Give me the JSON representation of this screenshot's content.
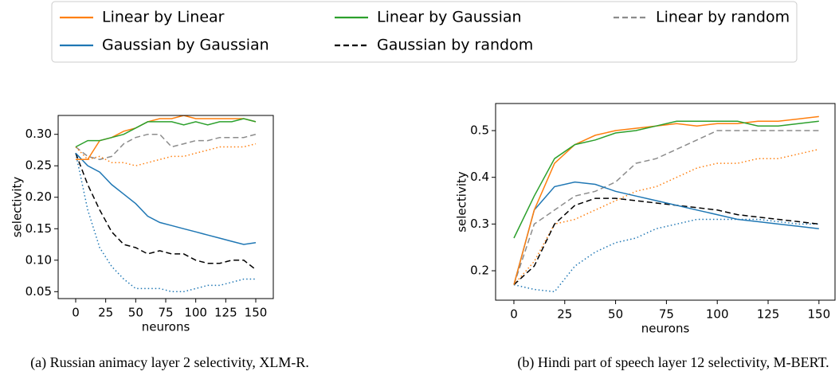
{
  "legend": {
    "entries": [
      {
        "name": "Linear by Linear",
        "color": "#ff7f0e",
        "dash": "solid"
      },
      {
        "name": "Gaussian by Gaussian",
        "color": "#1f77b4",
        "dash": "solid"
      },
      {
        "name": "Linear by Gaussian",
        "color": "#2ca02c",
        "dash": "solid"
      },
      {
        "name": "Gaussian by random",
        "color": "#000000",
        "dash": "dashed"
      },
      {
        "name": "Linear by random",
        "color": "#8c8c8c",
        "dash": "dashed"
      }
    ]
  },
  "chart_data": [
    {
      "type": "line",
      "caption": "(a) Russian animacy layer 2 selectivity, XLM-R.",
      "x_label": "neurons",
      "y_label": "selectivity",
      "xlim": [
        -14.6,
        164.6
      ],
      "xticks": [
        0,
        25,
        50,
        75,
        100,
        125,
        150
      ],
      "ylim": [
        0.039,
        0.33
      ],
      "yticks": [
        0.05,
        {
          "value": 0.1,
          "label": "0.10"
        },
        0.15,
        {
          "value": 0.2,
          "label": "0.20"
        },
        0.25,
        {
          "value": 0.3,
          "label": "0.30"
        }
      ],
      "x": [
        0,
        10,
        20,
        30,
        40,
        50,
        60,
        70,
        80,
        90,
        100,
        110,
        120,
        130,
        140,
        150
      ],
      "series": [
        {
          "color": "#8c8c8c",
          "dash": "dashed",
          "values": [
            0.28,
            0.265,
            0.26,
            0.265,
            0.285,
            0.295,
            0.3,
            0.3,
            0.28,
            0.285,
            0.29,
            0.29,
            0.295,
            0.295,
            0.295,
            0.3
          ]
        },
        {
          "color": "#ff7f0e",
          "dash": "dotted",
          "values": [
            0.28,
            0.26,
            0.265,
            0.255,
            0.255,
            0.25,
            0.255,
            0.26,
            0.265,
            0.265,
            0.27,
            0.275,
            0.28,
            0.28,
            0.28,
            0.285
          ]
        },
        {
          "color": "#1f77b4",
          "dash": "dotted",
          "values": [
            0.27,
            0.18,
            0.12,
            0.09,
            0.07,
            0.055,
            0.055,
            0.055,
            0.05,
            0.05,
            0.055,
            0.06,
            0.06,
            0.065,
            0.07,
            0.07
          ]
        },
        {
          "color": "#000000",
          "dash": "dashed",
          "values": [
            0.27,
            0.22,
            0.18,
            0.145,
            0.125,
            0.12,
            0.11,
            0.115,
            0.11,
            0.11,
            0.1,
            0.095,
            0.095,
            0.1,
            0.1,
            0.085
          ]
        },
        {
          "color": "#1f77b4",
          "dash": "solid",
          "values": [
            0.27,
            0.25,
            0.24,
            0.22,
            0.205,
            0.19,
            0.17,
            0.16,
            0.155,
            0.15,
            0.145,
            0.14,
            0.135,
            0.13,
            0.125,
            0.128
          ]
        },
        {
          "color": "#ff7f0e",
          "dash": "solid",
          "values": [
            0.26,
            0.26,
            0.29,
            0.295,
            0.305,
            0.31,
            0.32,
            0.325,
            0.325,
            0.33,
            0.325,
            0.325,
            0.325,
            0.325,
            0.325,
            0.32
          ]
        },
        {
          "color": "#2ca02c",
          "dash": "solid",
          "values": [
            0.28,
            0.29,
            0.29,
            0.295,
            0.3,
            0.31,
            0.32,
            0.32,
            0.32,
            0.315,
            0.32,
            0.315,
            0.32,
            0.32,
            0.325,
            0.32
          ]
        }
      ]
    },
    {
      "type": "line",
      "caption": "(b) Hindi part of speech layer 12 selectivity, M-BERT.",
      "x_label": "neurons",
      "y_label": "selectivity",
      "xlim": [
        -9.0,
        157.9
      ],
      "xticks": [
        0,
        25,
        50,
        75,
        100,
        125,
        150
      ],
      "ylim": [
        0.137,
        0.558
      ],
      "yticks": [
        0.2,
        0.3,
        0.4,
        0.5
      ],
      "x": [
        0,
        10,
        20,
        30,
        40,
        50,
        60,
        70,
        80,
        90,
        100,
        110,
        120,
        130,
        140,
        150
      ],
      "series": [
        {
          "color": "#8c8c8c",
          "dash": "dashed",
          "values": [
            0.17,
            0.3,
            0.33,
            0.36,
            0.37,
            0.39,
            0.43,
            0.44,
            0.46,
            0.48,
            0.5,
            0.5,
            0.5,
            0.5,
            0.5,
            0.5
          ]
        },
        {
          "color": "#ff7f0e",
          "dash": "dotted",
          "values": [
            0.17,
            0.22,
            0.3,
            0.31,
            0.33,
            0.35,
            0.37,
            0.38,
            0.4,
            0.42,
            0.43,
            0.43,
            0.44,
            0.44,
            0.45,
            0.46
          ]
        },
        {
          "color": "#1f77b4",
          "dash": "dotted",
          "values": [
            0.17,
            0.16,
            0.155,
            0.21,
            0.24,
            0.26,
            0.27,
            0.29,
            0.3,
            0.31,
            0.31,
            0.31,
            0.31,
            0.305,
            0.3,
            0.3
          ]
        },
        {
          "color": "#000000",
          "dash": "dashed",
          "values": [
            0.17,
            0.21,
            0.3,
            0.34,
            0.355,
            0.355,
            0.35,
            0.345,
            0.34,
            0.335,
            0.33,
            0.32,
            0.315,
            0.31,
            0.305,
            0.3
          ]
        },
        {
          "color": "#1f77b4",
          "dash": "solid",
          "values": [
            0.17,
            0.33,
            0.38,
            0.39,
            0.385,
            0.37,
            0.36,
            0.35,
            0.34,
            0.33,
            0.32,
            0.31,
            0.305,
            0.3,
            0.295,
            0.29
          ]
        },
        {
          "color": "#ff7f0e",
          "dash": "solid",
          "values": [
            0.17,
            0.33,
            0.43,
            0.47,
            0.49,
            0.5,
            0.505,
            0.51,
            0.515,
            0.51,
            0.515,
            0.515,
            0.52,
            0.52,
            0.525,
            0.53
          ]
        },
        {
          "color": "#2ca02c",
          "dash": "solid",
          "values": [
            0.27,
            0.36,
            0.44,
            0.47,
            0.48,
            0.495,
            0.5,
            0.51,
            0.52,
            0.52,
            0.52,
            0.52,
            0.51,
            0.51,
            0.515,
            0.52
          ]
        }
      ]
    }
  ]
}
